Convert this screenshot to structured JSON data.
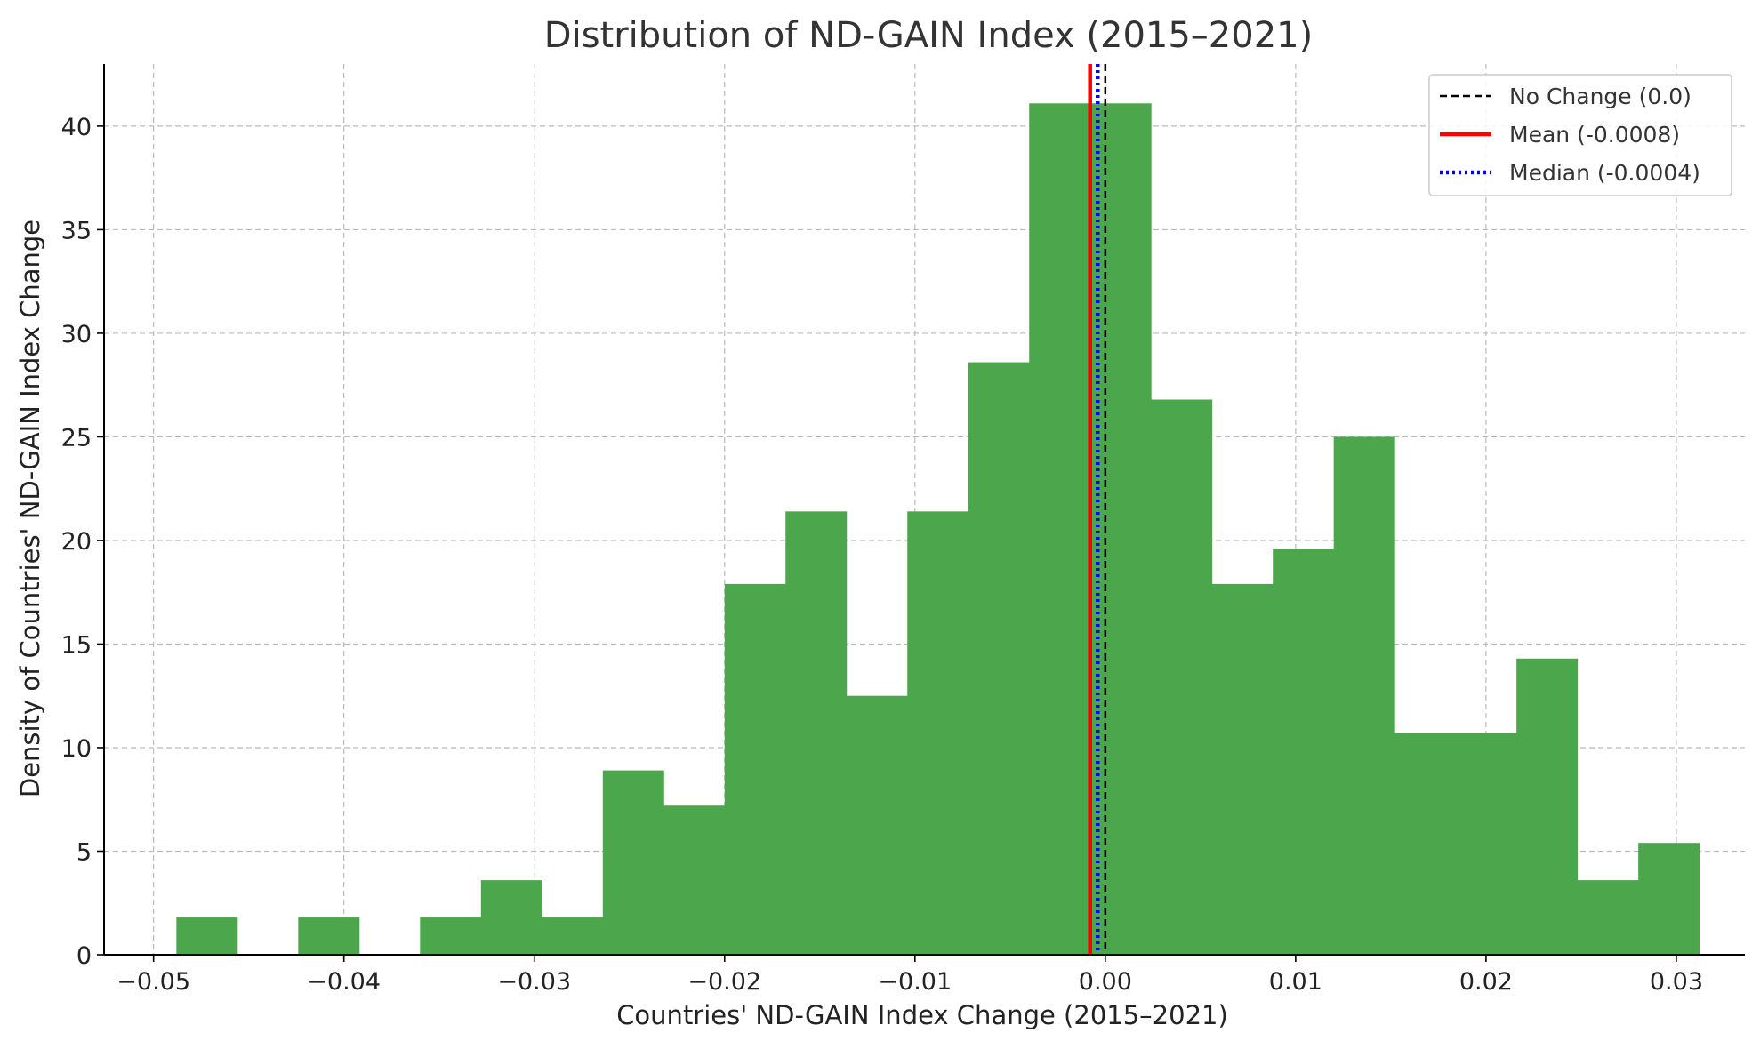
{
  "chart_data": {
    "type": "bar",
    "title": "Distribution of ND-GAIN Index (2015–2021)",
    "xlabel": "Countries' ND-GAIN Index Change (2015–2021)",
    "ylabel": "Density of Countries' ND-GAIN Index Change",
    "xlim": [
      -0.0526,
      0.0336
    ],
    "ylim": [
      0,
      43
    ],
    "grid": true,
    "x_ticks": [
      -0.05,
      -0.04,
      -0.03,
      -0.02,
      -0.01,
      0.0,
      0.01,
      0.02,
      0.03
    ],
    "x_tick_labels": [
      "−0.05",
      "−0.04",
      "−0.03",
      "−0.02",
      "−0.01",
      "0.00",
      "0.01",
      "0.02",
      "0.03"
    ],
    "y_ticks": [
      0,
      5,
      10,
      15,
      20,
      25,
      30,
      35,
      40
    ],
    "y_tick_labels": [
      "0",
      "5",
      "10",
      "15",
      "20",
      "25",
      "30",
      "35",
      "40"
    ],
    "bar_color": "#4ca64c",
    "bins": [
      {
        "x0": -0.0488,
        "x1": -0.0456,
        "value": 1.8
      },
      {
        "x0": -0.0456,
        "x1": -0.0424,
        "value": 0
      },
      {
        "x0": -0.0424,
        "x1": -0.0392,
        "value": 1.8
      },
      {
        "x0": -0.0392,
        "x1": -0.036,
        "value": 0
      },
      {
        "x0": -0.036,
        "x1": -0.0328,
        "value": 1.8
      },
      {
        "x0": -0.0328,
        "x1": -0.0296,
        "value": 3.6
      },
      {
        "x0": -0.0296,
        "x1": -0.0264,
        "value": 1.8
      },
      {
        "x0": -0.0264,
        "x1": -0.0232,
        "value": 8.9
      },
      {
        "x0": -0.0232,
        "x1": -0.02,
        "value": 7.2
      },
      {
        "x0": -0.02,
        "x1": -0.0168,
        "value": 17.9
      },
      {
        "x0": -0.0168,
        "x1": -0.0136,
        "value": 21.4
      },
      {
        "x0": -0.0136,
        "x1": -0.0104,
        "value": 12.5
      },
      {
        "x0": -0.0104,
        "x1": -0.0072,
        "value": 21.4
      },
      {
        "x0": -0.0072,
        "x1": -0.004,
        "value": 28.6
      },
      {
        "x0": -0.004,
        "x1": -0.0008,
        "value": 41.1
      },
      {
        "x0": -0.0008,
        "x1": 0.0024,
        "value": 41.1
      },
      {
        "x0": 0.0024,
        "x1": 0.0056,
        "value": 26.8
      },
      {
        "x0": 0.0056,
        "x1": 0.0088,
        "value": 17.9
      },
      {
        "x0": 0.0088,
        "x1": 0.012,
        "value": 19.6
      },
      {
        "x0": 0.012,
        "x1": 0.0152,
        "value": 25.0
      },
      {
        "x0": 0.0152,
        "x1": 0.0184,
        "value": 10.7
      },
      {
        "x0": 0.0184,
        "x1": 0.0216,
        "value": 10.7
      },
      {
        "x0": 0.0216,
        "x1": 0.0248,
        "value": 14.3
      },
      {
        "x0": 0.0248,
        "x1": 0.028,
        "value": 3.6
      },
      {
        "x0": 0.028,
        "x1": 0.0312,
        "value": 5.4
      }
    ],
    "reference_lines": [
      {
        "name": "No Change (0.0)",
        "x": 0.0,
        "color": "#000000",
        "style": "dashed"
      },
      {
        "name": "Mean (-0.0008)",
        "x": -0.0008,
        "color": "#ff0000",
        "style": "solid"
      },
      {
        "name": "Median (-0.0004)",
        "x": -0.0004,
        "color": "#0000ff",
        "style": "dotted"
      }
    ],
    "legend_position": "top-right"
  }
}
